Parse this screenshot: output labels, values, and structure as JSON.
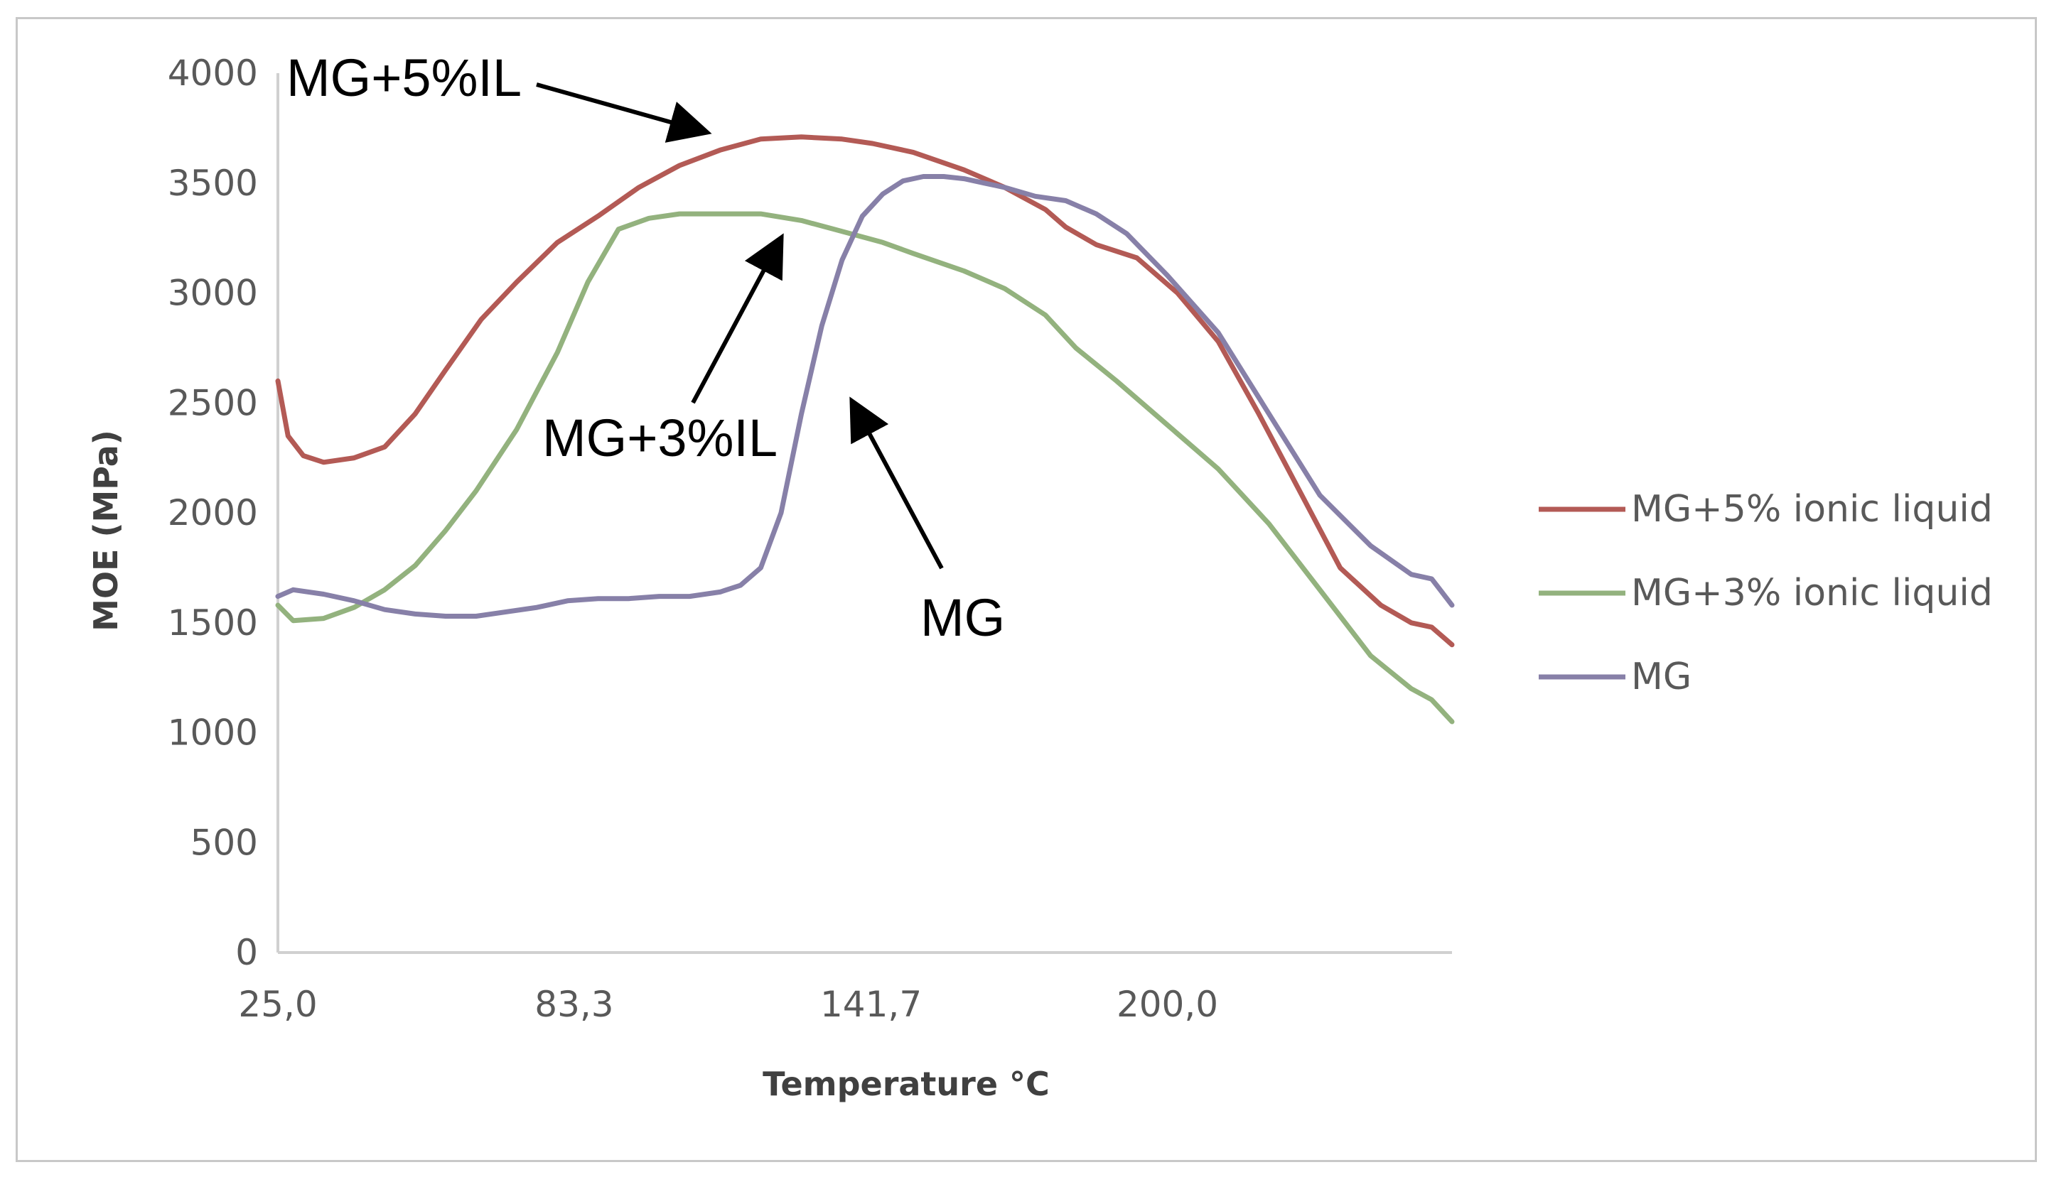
{
  "chart_data": {
    "type": "line",
    "title": "",
    "xlabel": "Temperature °C",
    "ylabel": "MOE (MPa)",
    "xlim": [
      25,
      256
    ],
    "ylim": [
      0,
      4000
    ],
    "x_ticks": [
      25.0,
      83.3,
      141.7,
      200.0
    ],
    "x_tick_labels": [
      "25,0",
      "83,3",
      "141,7",
      "200,0"
    ],
    "y_ticks": [
      0,
      500,
      1000,
      1500,
      2000,
      2500,
      3000,
      3500,
      4000
    ],
    "y_tick_labels": [
      "0",
      "500",
      "1000",
      "1500",
      "2000",
      "2500",
      "3000",
      "3500",
      "4000"
    ],
    "legend_position": "right",
    "series": [
      {
        "name": "MG+5% ionic liquid",
        "color": "#b35a55",
        "x": [
          25,
          27,
          30,
          34,
          40,
          46,
          52,
          58,
          65,
          72,
          80,
          88,
          96,
          104,
          112,
          120,
          128,
          136,
          142,
          150,
          160,
          168,
          176,
          180,
          186,
          194,
          202,
          210,
          218,
          226,
          234,
          242,
          248,
          252,
          256
        ],
        "y": [
          2600,
          2350,
          2260,
          2230,
          2250,
          2300,
          2450,
          2650,
          2880,
          3050,
          3230,
          3350,
          3480,
          3580,
          3650,
          3700,
          3710,
          3700,
          3680,
          3640,
          3560,
          3480,
          3380,
          3300,
          3220,
          3160,
          3000,
          2780,
          2450,
          2100,
          1750,
          1580,
          1500,
          1480,
          1400
        ]
      },
      {
        "name": "MG+3% ionic liquid",
        "color": "#93b27e",
        "x": [
          25,
          28,
          34,
          40,
          46,
          52,
          58,
          64,
          72,
          80,
          86,
          92,
          98,
          104,
          112,
          120,
          128,
          136,
          144,
          150,
          160,
          168,
          176,
          182,
          190,
          200,
          210,
          220,
          230,
          240,
          248,
          252,
          256
        ],
        "y": [
          1580,
          1510,
          1520,
          1570,
          1650,
          1760,
          1920,
          2100,
          2380,
          2730,
          3050,
          3290,
          3340,
          3360,
          3360,
          3360,
          3330,
          3280,
          3230,
          3180,
          3100,
          3020,
          2900,
          2750,
          2600,
          2400,
          2200,
          1950,
          1650,
          1350,
          1200,
          1150,
          1050
        ]
      },
      {
        "name": "MG",
        "color": "#8780a8",
        "x": [
          25,
          28,
          34,
          40,
          46,
          52,
          58,
          64,
          70,
          76,
          82,
          88,
          94,
          100,
          106,
          112,
          116,
          120,
          124,
          128,
          132,
          136,
          140,
          144,
          148,
          152,
          156,
          160,
          164,
          168,
          174,
          180,
          186,
          192,
          200,
          210,
          220,
          230,
          240,
          248,
          252,
          254,
          256
        ],
        "y": [
          1620,
          1650,
          1630,
          1600,
          1560,
          1540,
          1530,
          1530,
          1550,
          1570,
          1600,
          1610,
          1610,
          1620,
          1620,
          1640,
          1670,
          1750,
          2000,
          2450,
          2850,
          3150,
          3350,
          3450,
          3510,
          3530,
          3530,
          3520,
          3500,
          3480,
          3440,
          3420,
          3360,
          3270,
          3080,
          2820,
          2450,
          2080,
          1850,
          1720,
          1700,
          1640,
          1580
        ]
      }
    ],
    "annotations": [
      {
        "text": "MG+5%IL"
      },
      {
        "text": "MG+3%IL"
      },
      {
        "text": "MG"
      }
    ]
  }
}
